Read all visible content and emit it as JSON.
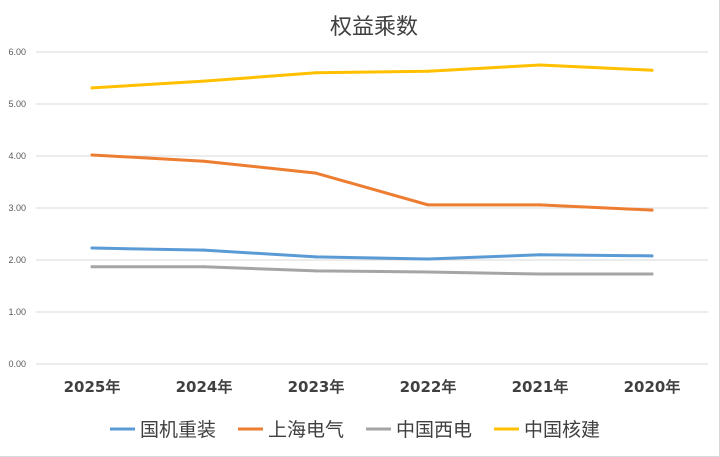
{
  "chart_data": {
    "type": "line",
    "title": "权益乘数",
    "xlabel": "",
    "ylabel": "",
    "categories": [
      "2025年",
      "2024年",
      "2023年",
      "2022年",
      "2021年",
      "2020年"
    ],
    "ylim": [
      0,
      6
    ],
    "yticks": [
      "0.00",
      "1.00",
      "2.00",
      "3.00",
      "4.00",
      "5.00",
      "6.00"
    ],
    "grid": true,
    "legend_position": "bottom",
    "series": [
      {
        "name": "国机重装",
        "color": "#5B9BD5",
        "values": [
          2.23,
          2.19,
          2.06,
          2.02,
          2.1,
          2.08
        ]
      },
      {
        "name": "上海电气",
        "color": "#ED7D31",
        "values": [
          4.02,
          3.9,
          3.67,
          3.06,
          3.06,
          2.96
        ]
      },
      {
        "name": "中国西电",
        "color": "#A5A5A5",
        "values": [
          1.87,
          1.87,
          1.79,
          1.77,
          1.73,
          1.73
        ]
      },
      {
        "name": "中国核建",
        "color": "#FFC000",
        "values": [
          5.31,
          5.44,
          5.6,
          5.63,
          5.75,
          5.65
        ]
      }
    ]
  }
}
